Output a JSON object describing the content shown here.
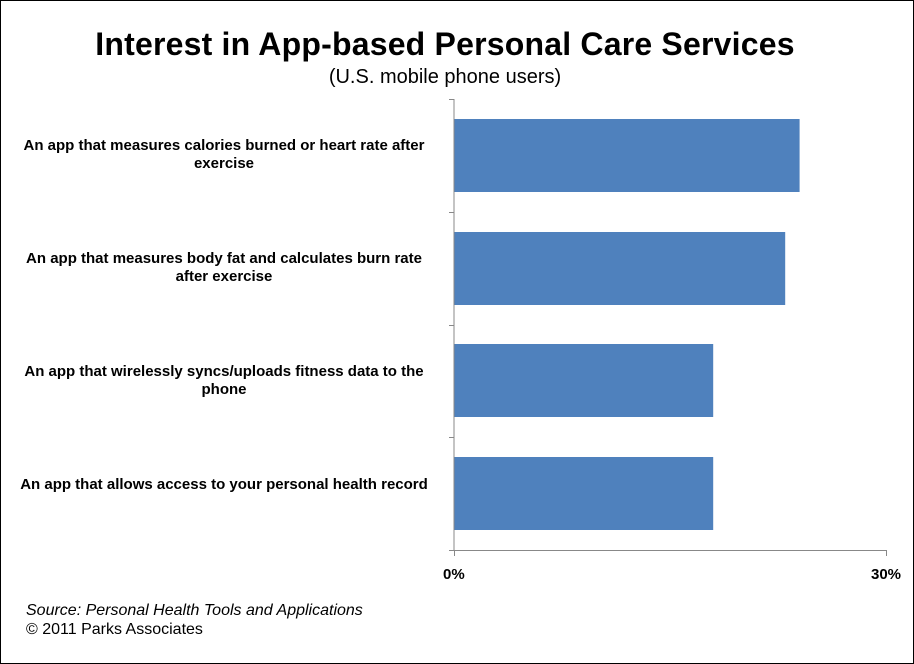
{
  "chart_data": {
    "type": "bar",
    "orientation": "horizontal",
    "title": "Interest in App-based Personal Care Services",
    "subtitle": "(U.S. mobile phone users)",
    "categories": [
      "An app that measures calories burned or heart rate after exercise",
      "An app that measures  body fat and calculates  burn rate after exercise",
      "An app that wirelessly syncs/uploads fitness data to the phone",
      "An app that allows access to your personal health record"
    ],
    "values": [
      24,
      23,
      18,
      18
    ],
    "unit": "%",
    "xlim": [
      0,
      30
    ],
    "xtick_labels": [
      "0%",
      "30%"
    ],
    "bar_color": "#4F81BD",
    "grid": false,
    "legend": "none"
  },
  "footer": {
    "source": "Source: Personal Health Tools and Applications",
    "copyright": "© 2011 Parks Associates"
  }
}
